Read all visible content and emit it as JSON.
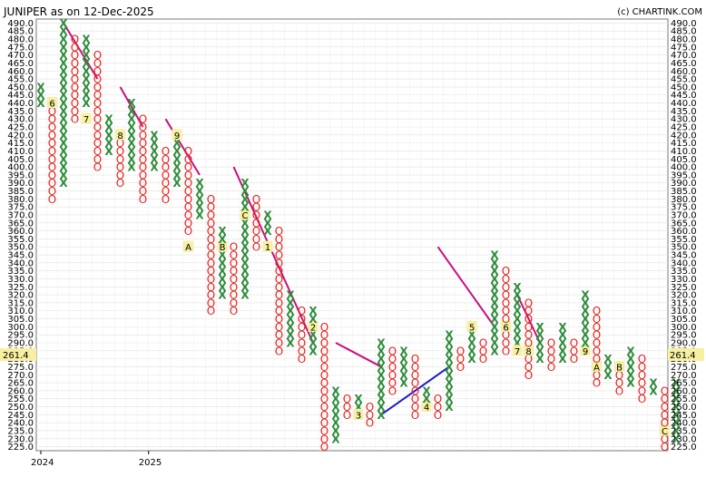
{
  "chart_data": {
    "type": "point-and-figure",
    "title": "JUNIPER as on 12-Dec-2025",
    "credit": "(c) CHARTINK.COM",
    "current_price": "261.4",
    "box_size": 5,
    "ylim": [
      225,
      490
    ],
    "x_tick_labels": [
      {
        "label": "2024",
        "col": 0
      },
      {
        "label": "2025",
        "col": 9.5
      }
    ],
    "grid": true,
    "colors": {
      "x": "#2e8b3a",
      "o": "#e8201b",
      "downtrend": "#c8107e",
      "uptrend": "#1a1ad6",
      "highlight": "#f6f0a0"
    },
    "columns": [
      {
        "type": "X",
        "low": 440,
        "high": 450
      },
      {
        "type": "O",
        "low": 380,
        "high": 440,
        "marks": {
          "440": "6"
        }
      },
      {
        "type": "X",
        "low": 390,
        "high": 490
      },
      {
        "type": "O",
        "low": 430,
        "high": 480
      },
      {
        "type": "X",
        "low": 440,
        "high": 480,
        "marks": {
          "430": "7"
        }
      },
      {
        "type": "O",
        "low": 400,
        "high": 470
      },
      {
        "type": "X",
        "low": 410,
        "high": 430
      },
      {
        "type": "O",
        "low": 390,
        "high": 420,
        "marks": {
          "420": "8"
        }
      },
      {
        "type": "X",
        "low": 400,
        "high": 440
      },
      {
        "type": "O",
        "low": 380,
        "high": 430
      },
      {
        "type": "X",
        "low": 400,
        "high": 420
      },
      {
        "type": "O",
        "low": 380,
        "high": 410
      },
      {
        "type": "X",
        "low": 390,
        "high": 420,
        "marks": {
          "420": "9"
        }
      },
      {
        "type": "O",
        "low": 360,
        "high": 410,
        "marks": {
          "350": "A"
        }
      },
      {
        "type": "X",
        "low": 370,
        "high": 390
      },
      {
        "type": "O",
        "low": 310,
        "high": 380
      },
      {
        "type": "X",
        "low": 320,
        "high": 360,
        "marks": {
          "350": "B"
        }
      },
      {
        "type": "O",
        "low": 310,
        "high": 350
      },
      {
        "type": "X",
        "low": 320,
        "high": 390,
        "marks": {
          "370": "C"
        }
      },
      {
        "type": "O",
        "low": 350,
        "high": 380
      },
      {
        "type": "X",
        "low": 360,
        "high": 370,
        "marks": {
          "350": "1"
        }
      },
      {
        "type": "O",
        "low": 285,
        "high": 360
      },
      {
        "type": "X",
        "low": 290,
        "high": 320
      },
      {
        "type": "O",
        "low": 280,
        "high": 310
      },
      {
        "type": "X",
        "low": 285,
        "high": 310,
        "marks": {
          "300": "2"
        }
      },
      {
        "type": "O",
        "low": 225,
        "high": 300
      },
      {
        "type": "X",
        "low": 230,
        "high": 260
      },
      {
        "type": "O",
        "low": 245,
        "high": 255
      },
      {
        "type": "X",
        "low": 250,
        "high": 255,
        "marks": {
          "245": "3"
        }
      },
      {
        "type": "O",
        "low": 240,
        "high": 250
      },
      {
        "type": "X",
        "low": 245,
        "high": 290
      },
      {
        "type": "O",
        "low": 260,
        "high": 285
      },
      {
        "type": "X",
        "low": 265,
        "high": 285
      },
      {
        "type": "O",
        "low": 245,
        "high": 280
      },
      {
        "type": "X",
        "low": 250,
        "high": 260,
        "marks": {
          "250": "4"
        }
      },
      {
        "type": "O",
        "low": 245,
        "high": 255
      },
      {
        "type": "X",
        "low": 250,
        "high": 295
      },
      {
        "type": "O",
        "low": 275,
        "high": 285
      },
      {
        "type": "X",
        "low": 280,
        "high": 295,
        "marks": {
          "300": "5"
        }
      },
      {
        "type": "O",
        "low": 280,
        "high": 290
      },
      {
        "type": "X",
        "low": 285,
        "high": 345
      },
      {
        "type": "O",
        "low": 285,
        "high": 335,
        "marks": {
          "300": "6"
        }
      },
      {
        "type": "X",
        "low": 290,
        "high": 325,
        "marks": {
          "285": "7"
        }
      },
      {
        "type": "O",
        "low": 270,
        "high": 315,
        "marks": {
          "285": "8"
        }
      },
      {
        "type": "X",
        "low": 280,
        "high": 300
      },
      {
        "type": "O",
        "low": 275,
        "high": 290
      },
      {
        "type": "X",
        "low": 280,
        "high": 300
      },
      {
        "type": "O",
        "low": 280,
        "high": 290
      },
      {
        "type": "X",
        "low": 285,
        "high": 320,
        "marks": {
          "285": "9"
        }
      },
      {
        "type": "O",
        "low": 265,
        "high": 310,
        "marks": {
          "275": "A"
        }
      },
      {
        "type": "X",
        "low": 270,
        "high": 280
      },
      {
        "type": "O",
        "low": 260,
        "high": 275,
        "marks": {
          "275": "B"
        }
      },
      {
        "type": "X",
        "low": 265,
        "high": 285
      },
      {
        "type": "O",
        "low": 255,
        "high": 280
      },
      {
        "type": "X",
        "low": 260,
        "high": 265
      },
      {
        "type": "O",
        "low": 225,
        "high": 260,
        "marks": {
          "235": "C"
        }
      },
      {
        "type": "X",
        "low": 230,
        "high": 265
      }
    ],
    "trendlines": [
      {
        "kind": "downtrend",
        "from": {
          "col": 2,
          "price": 490
        },
        "to": {
          "col": 5,
          "price": 455
        }
      },
      {
        "kind": "downtrend",
        "from": {
          "col": 7,
          "price": 450
        },
        "to": {
          "col": 9,
          "price": 425
        }
      },
      {
        "kind": "downtrend",
        "from": {
          "col": 11,
          "price": 430
        },
        "to": {
          "col": 14,
          "price": 395
        }
      },
      {
        "kind": "downtrend",
        "from": {
          "col": 17,
          "price": 400
        },
        "to": {
          "col": 24,
          "price": 290
        }
      },
      {
        "kind": "downtrend",
        "from": {
          "col": 26,
          "price": 290
        },
        "to": {
          "col": 30,
          "price": 275
        }
      },
      {
        "kind": "downtrend",
        "from": {
          "col": 35,
          "price": 350
        },
        "to": {
          "col": 40,
          "price": 300
        }
      },
      {
        "kind": "downtrend",
        "from": {
          "col": 42,
          "price": 320
        },
        "to": {
          "col": 44,
          "price": 290
        }
      },
      {
        "kind": "uptrend",
        "from": {
          "col": 30,
          "price": 245
        },
        "to": {
          "col": 36,
          "price": 275
        }
      }
    ]
  }
}
